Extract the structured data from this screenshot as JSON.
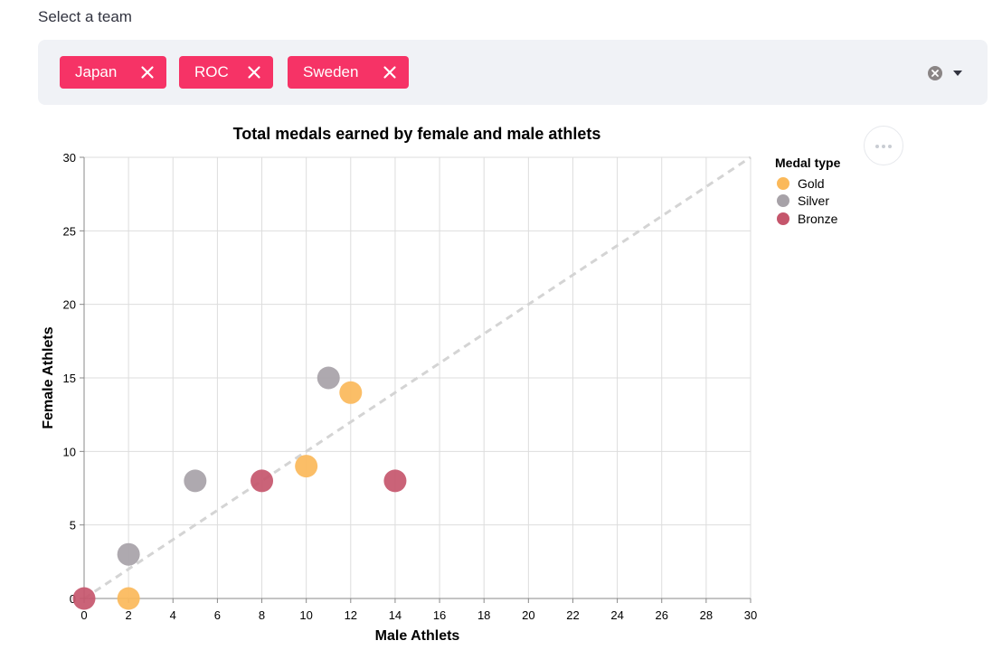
{
  "selector": {
    "label": "Select a team",
    "tags": [
      "Japan",
      "ROC",
      "Sweden"
    ]
  },
  "colors": {
    "tag_bg": "#f63366",
    "gold": "#fbb95a",
    "silver": "#a7a2a8",
    "bronze": "#c5566c",
    "diagonal": "#d4d4d4",
    "grid": "#dddddd"
  },
  "chart_data": {
    "type": "scatter",
    "title": "Total medals earned by female and male athlets",
    "xlabel": "Male Athlets",
    "ylabel": "Female Athlets",
    "xlim": [
      0,
      30
    ],
    "ylim": [
      0,
      30
    ],
    "x_ticks": [
      0,
      2,
      4,
      6,
      8,
      10,
      12,
      14,
      16,
      18,
      20,
      22,
      24,
      26,
      28,
      30
    ],
    "y_ticks": [
      0,
      5,
      10,
      15,
      20,
      25,
      30
    ],
    "grid": true,
    "reference_line": "y = x, dashed",
    "legend": {
      "title": "Medal type",
      "placement": "right",
      "entries": [
        "Gold",
        "Silver",
        "Bronze"
      ]
    },
    "series": [
      {
        "name": "Gold",
        "color": "#fbb95a",
        "points": [
          [
            2,
            0
          ],
          [
            10,
            9
          ],
          [
            12,
            14
          ]
        ]
      },
      {
        "name": "Silver",
        "color": "#a7a2a8",
        "points": [
          [
            2,
            3
          ],
          [
            5,
            8
          ],
          [
            11,
            15
          ]
        ]
      },
      {
        "name": "Bronze",
        "color": "#c5566c",
        "points": [
          [
            0,
            0
          ],
          [
            8,
            8
          ],
          [
            14,
            8
          ]
        ]
      }
    ]
  }
}
